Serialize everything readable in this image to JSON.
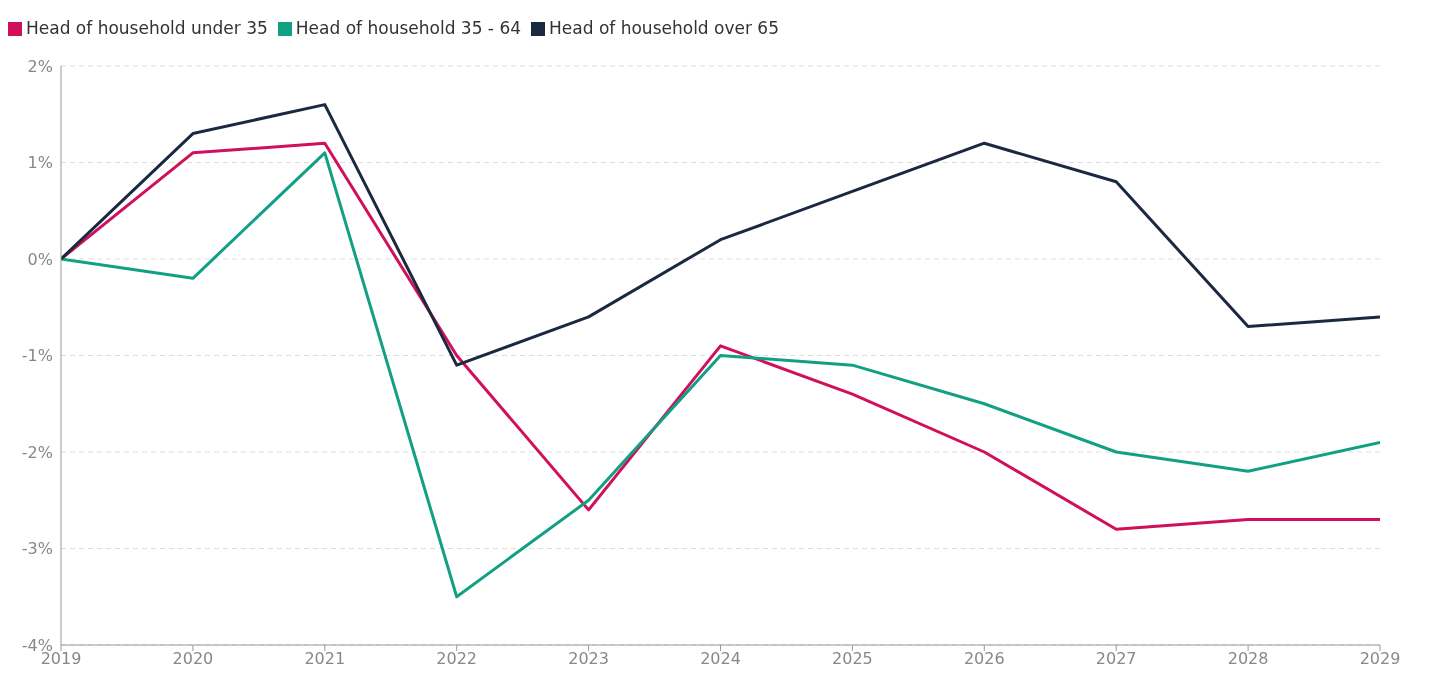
{
  "chart_data": {
    "type": "line",
    "x": [
      2019,
      2020,
      2021,
      2022,
      2023,
      2024,
      2025,
      2026,
      2027,
      2028,
      2029
    ],
    "xlim": [
      2019,
      2029
    ],
    "xticks": [
      2019,
      2020,
      2021,
      2022,
      2023,
      2024,
      2025,
      2026,
      2027,
      2028,
      2029
    ],
    "ylim": [
      -4,
      2
    ],
    "yticks": [
      {
        "value": -4,
        "label": "-4%"
      },
      {
        "value": -3,
        "label": "-3%"
      },
      {
        "value": -2,
        "label": "-2%"
      },
      {
        "value": -1,
        "label": "-1%"
      },
      {
        "value": 0,
        "label": "0%"
      },
      {
        "value": 1,
        "label": "1%"
      },
      {
        "value": 2,
        "label": "2%"
      }
    ],
    "series": [
      {
        "name": "Head of household under 35",
        "color": "#d0105a",
        "values": [
          0,
          1.1,
          1.2,
          -1.0,
          -2.6,
          -0.9,
          -1.4,
          -2.0,
          -2.8,
          -2.7,
          -2.7
        ]
      },
      {
        "name": "Head of household 35 - 64",
        "color": "#12a085",
        "values": [
          0,
          -0.2,
          1.1,
          -3.5,
          -2.5,
          -1.0,
          -1.1,
          -1.5,
          -2.0,
          -2.2,
          -1.9
        ]
      },
      {
        "name": "Head of household over 65",
        "color": "#1b2940",
        "values": [
          0,
          1.3,
          1.6,
          -1.1,
          -0.6,
          0.2,
          0.7,
          1.2,
          0.8,
          -0.7,
          -0.6
        ]
      }
    ],
    "grid": "y",
    "legend": "top left",
    "marker": "none",
    "line_style": "solid"
  }
}
